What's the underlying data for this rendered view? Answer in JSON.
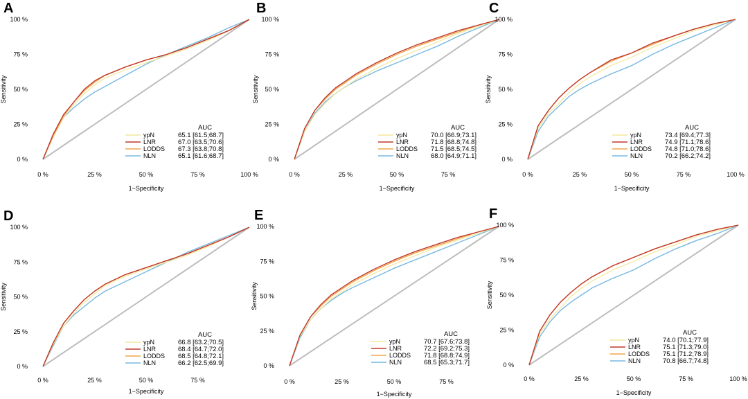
{
  "colors": {
    "ypN": "#f3e79a",
    "LNR": "#c0392b",
    "LODDS": "#f0a54a",
    "NLN": "#76b8e0",
    "diagonal": "#bdbdbd"
  },
  "chart_data": [
    {
      "type": "line",
      "panel": "A",
      "xlabel": "1−Specificity",
      "ylabel": "Sensitivity",
      "xticks": [
        "0 %",
        "25 %",
        "50 %",
        "75 %",
        "100 %"
      ],
      "yticks": [
        "0 %",
        "25 %",
        "50 %",
        "75 %",
        "100 %"
      ],
      "xlim": [
        0,
        100
      ],
      "ylim": [
        0,
        100
      ],
      "legend_title": "AUC",
      "series": [
        {
          "name": "ypN",
          "auc": "65.1 [61.5;68.7]",
          "x": [
            0,
            5,
            10,
            15,
            20,
            25,
            30,
            40,
            50,
            60,
            70,
            80,
            90,
            100
          ],
          "y": [
            0,
            16,
            30,
            39,
            47,
            53,
            58,
            64,
            69,
            74,
            79,
            85,
            92,
            100
          ]
        },
        {
          "name": "LNR",
          "auc": "67.0 [63.5;70.6]",
          "x": [
            0,
            5,
            10,
            15,
            20,
            25,
            30,
            40,
            50,
            60,
            70,
            80,
            90,
            100
          ],
          "y": [
            0,
            18,
            32,
            41,
            50,
            56,
            60,
            66,
            71,
            75,
            80,
            86,
            92,
            100
          ]
        },
        {
          "name": "LODDS",
          "auc": "67.3 [63.8;70.8]",
          "x": [
            0,
            5,
            10,
            15,
            20,
            25,
            30,
            40,
            50,
            60,
            70,
            80,
            90,
            100
          ],
          "y": [
            0,
            17,
            31,
            41,
            49,
            55,
            60,
            66,
            71,
            75,
            80,
            86,
            92,
            100
          ]
        },
        {
          "name": "NLN",
          "auc": "65.1 [61.6;68.7]",
          "x": [
            0,
            5,
            10,
            15,
            20,
            25,
            30,
            40,
            50,
            60,
            70,
            80,
            90,
            100
          ],
          "y": [
            0,
            16,
            30,
            37,
            43,
            48,
            52,
            60,
            68,
            75,
            81,
            87,
            94,
            100
          ]
        }
      ]
    },
    {
      "type": "line",
      "panel": "B",
      "xlabel": "1−Specificity",
      "ylabel": "Sensitivity",
      "xticks": [
        "0 %",
        "25 %",
        "50 %",
        "75 %"
      ],
      "yticks": [
        "0 %",
        "25 %",
        "50 %",
        "75 %",
        "100 %"
      ],
      "xlim": [
        0,
        100
      ],
      "ylim": [
        0,
        100
      ],
      "legend_title": "AUC",
      "series": [
        {
          "name": "ypN",
          "auc": "70.0 [66.9;73.1]",
          "x": [
            0,
            5,
            10,
            15,
            20,
            25,
            30,
            40,
            50,
            60,
            70,
            80,
            90,
            100
          ],
          "y": [
            0,
            20,
            32,
            40,
            47,
            52,
            57,
            65,
            72,
            78,
            84,
            90,
            95,
            100
          ]
        },
        {
          "name": "LNR",
          "auc": "71.8 [68.8;74.8]",
          "x": [
            0,
            5,
            10,
            15,
            20,
            25,
            30,
            40,
            50,
            60,
            70,
            80,
            90,
            100
          ],
          "y": [
            0,
            22,
            35,
            44,
            51,
            56,
            61,
            69,
            76,
            82,
            87,
            92,
            96,
            100
          ]
        },
        {
          "name": "LODDS",
          "auc": "71.5 [68.5;74.5]",
          "x": [
            0,
            5,
            10,
            15,
            20,
            25,
            30,
            40,
            50,
            60,
            70,
            80,
            90,
            100
          ],
          "y": [
            0,
            22,
            35,
            43,
            50,
            55,
            60,
            68,
            75,
            81,
            86,
            91,
            96,
            100
          ]
        },
        {
          "name": "NLN",
          "auc": "68.0 [64.9;71.1]",
          "x": [
            0,
            5,
            10,
            15,
            20,
            25,
            30,
            40,
            50,
            60,
            70,
            80,
            90,
            100
          ],
          "y": [
            0,
            20,
            33,
            41,
            47,
            52,
            56,
            63,
            69,
            75,
            81,
            88,
            94,
            100
          ]
        }
      ]
    },
    {
      "type": "line",
      "panel": "C",
      "xlabel": "1−Specificity",
      "ylabel": "Sensitivity",
      "xticks": [
        "0 %",
        "25 %",
        "50 %",
        "75 %",
        "100 %"
      ],
      "yticks": [
        "0 %",
        "25 %",
        "50 %",
        "75 %",
        "100 %"
      ],
      "xlim": [
        0,
        100
      ],
      "ylim": [
        0,
        100
      ],
      "legend_title": "AUC",
      "series": [
        {
          "name": "ypN",
          "auc": "73.4 [69.4;77.3]",
          "x": [
            0,
            5,
            10,
            15,
            20,
            25,
            30,
            40,
            50,
            60,
            70,
            80,
            90,
            100
          ],
          "y": [
            0,
            22,
            33,
            40,
            48,
            54,
            59,
            67,
            73,
            80,
            86,
            92,
            96,
            100
          ]
        },
        {
          "name": "LNR",
          "auc": "74.9 [71.1;78.6]",
          "x": [
            0,
            5,
            10,
            15,
            20,
            25,
            30,
            40,
            50,
            60,
            70,
            80,
            90,
            100
          ],
          "y": [
            0,
            24,
            35,
            44,
            51,
            57,
            62,
            71,
            76,
            83,
            88,
            93,
            97,
            100
          ]
        },
        {
          "name": "LODDS",
          "auc": "74.8 [71.0;78.6]",
          "x": [
            0,
            5,
            10,
            15,
            20,
            25,
            30,
            40,
            50,
            60,
            70,
            80,
            90,
            100
          ],
          "y": [
            0,
            24,
            35,
            44,
            51,
            57,
            62,
            70,
            76,
            82,
            88,
            93,
            97,
            100
          ]
        },
        {
          "name": "NLN",
          "auc": "70.2 [66.2;74.2]",
          "x": [
            0,
            5,
            10,
            15,
            20,
            25,
            30,
            40,
            50,
            60,
            70,
            80,
            90,
            100
          ],
          "y": [
            0,
            20,
            31,
            38,
            45,
            50,
            54,
            61,
            67,
            75,
            82,
            88,
            94,
            100
          ]
        }
      ]
    },
    {
      "type": "line",
      "panel": "D",
      "xlabel": "1−Specificity",
      "ylabel": "Sensitivity",
      "xticks": [
        "0 %",
        "25 %",
        "50 %",
        "75 %"
      ],
      "yticks": [
        "0 %",
        "25 %",
        "50 %",
        "75 %",
        "100 %"
      ],
      "xlim": [
        0,
        100
      ],
      "ylim": [
        0,
        100
      ],
      "legend_title": "AUC",
      "series": [
        {
          "name": "ypN",
          "auc": "66.8 [63.2;70.5]",
          "x": [
            0,
            5,
            10,
            15,
            20,
            25,
            30,
            40,
            50,
            60,
            70,
            80,
            90,
            100
          ],
          "y": [
            0,
            16,
            29,
            38,
            46,
            52,
            58,
            65,
            70,
            75,
            80,
            86,
            93,
            100
          ]
        },
        {
          "name": "LNR",
          "auc": "68.4 [64.7;72.0]",
          "x": [
            0,
            5,
            10,
            15,
            20,
            25,
            30,
            40,
            50,
            60,
            70,
            80,
            90,
            100
          ],
          "y": [
            0,
            17,
            31,
            40,
            48,
            54,
            59,
            66,
            71,
            76,
            81,
            87,
            93,
            100
          ]
        },
        {
          "name": "LODDS",
          "auc": "68.5 [64.8;72.1]",
          "x": [
            0,
            5,
            10,
            15,
            20,
            25,
            30,
            40,
            50,
            60,
            70,
            80,
            90,
            100
          ],
          "y": [
            0,
            17,
            31,
            40,
            48,
            54,
            59,
            66,
            71,
            76,
            81,
            87,
            93,
            100
          ]
        },
        {
          "name": "NLN",
          "auc": "66.2 [62.5;69.9]",
          "x": [
            0,
            5,
            10,
            15,
            20,
            25,
            30,
            40,
            50,
            60,
            70,
            80,
            90,
            100
          ],
          "y": [
            0,
            15,
            29,
            37,
            43,
            49,
            54,
            61,
            68,
            75,
            82,
            88,
            94,
            100
          ]
        }
      ]
    },
    {
      "type": "line",
      "panel": "E",
      "xlabel": "1−Specificity",
      "ylabel": "Sensitivity",
      "xticks": [
        "0 %",
        "25 %",
        "50 %",
        "75 %"
      ],
      "yticks": [
        "0 %",
        "25 %",
        "50 %",
        "75 %",
        "100 %"
      ],
      "xlim": [
        0,
        100
      ],
      "ylim": [
        0,
        100
      ],
      "legend_title": "AUC",
      "series": [
        {
          "name": "ypN",
          "auc": "70.7 [67.6;73.8]",
          "x": [
            0,
            5,
            10,
            15,
            20,
            25,
            30,
            40,
            50,
            60,
            70,
            80,
            90,
            100
          ],
          "y": [
            0,
            21,
            33,
            41,
            48,
            53,
            58,
            66,
            73,
            79,
            85,
            90,
            95,
            100
          ]
        },
        {
          "name": "LNR",
          "auc": "72.2 [69.2;75.3]",
          "x": [
            0,
            5,
            10,
            15,
            20,
            25,
            30,
            40,
            50,
            60,
            70,
            80,
            90,
            100
          ],
          "y": [
            0,
            22,
            35,
            44,
            51,
            56,
            61,
            69,
            76,
            82,
            87,
            92,
            96,
            100
          ]
        },
        {
          "name": "LODDS",
          "auc": "71.8 [68.8;74.9]",
          "x": [
            0,
            5,
            10,
            15,
            20,
            25,
            30,
            40,
            50,
            60,
            70,
            80,
            90,
            100
          ],
          "y": [
            0,
            22,
            35,
            43,
            50,
            55,
            60,
            68,
            75,
            81,
            86,
            91,
            96,
            100
          ]
        },
        {
          "name": "NLN",
          "auc": "68.5 [65.3;71.7]",
          "x": [
            0,
            5,
            10,
            15,
            20,
            25,
            30,
            40,
            50,
            60,
            70,
            80,
            90,
            100
          ],
          "y": [
            0,
            20,
            33,
            41,
            47,
            52,
            56,
            63,
            70,
            76,
            82,
            88,
            94,
            100
          ]
        }
      ]
    },
    {
      "type": "line",
      "panel": "F",
      "xlabel": "1−Specificity",
      "ylabel": "Sensitivity",
      "xticks": [
        "0 %",
        "25 %",
        "50 %",
        "75 %",
        "100 %"
      ],
      "yticks": [
        "0 %",
        "25 %",
        "50 %",
        "75 %",
        "100 %"
      ],
      "xlim": [
        0,
        100
      ],
      "ylim": [
        0,
        100
      ],
      "legend_title": "AUC",
      "series": [
        {
          "name": "ypN",
          "auc": "74.0 [70.1;77.9]",
          "x": [
            0,
            5,
            10,
            15,
            20,
            25,
            30,
            40,
            50,
            60,
            70,
            80,
            90,
            100
          ],
          "y": [
            0,
            22,
            33,
            41,
            49,
            55,
            60,
            68,
            74,
            81,
            86,
            92,
            96,
            100
          ]
        },
        {
          "name": "LNR",
          "auc": "75.1 [71.3;79.0]",
          "x": [
            0,
            5,
            10,
            15,
            20,
            25,
            30,
            40,
            50,
            60,
            70,
            80,
            90,
            100
          ],
          "y": [
            0,
            24,
            36,
            45,
            52,
            58,
            63,
            71,
            77,
            83,
            88,
            93,
            97,
            100
          ]
        },
        {
          "name": "LODDS",
          "auc": "75.1 [71.2;78.9]",
          "x": [
            0,
            5,
            10,
            15,
            20,
            25,
            30,
            40,
            50,
            60,
            70,
            80,
            90,
            100
          ],
          "y": [
            0,
            24,
            36,
            45,
            52,
            58,
            63,
            71,
            77,
            83,
            88,
            93,
            97,
            100
          ]
        },
        {
          "name": "NLN",
          "auc": "70.8 [66.7;74.8]",
          "x": [
            0,
            5,
            10,
            15,
            20,
            25,
            30,
            40,
            50,
            60,
            70,
            80,
            90,
            100
          ],
          "y": [
            0,
            20,
            31,
            39,
            45,
            50,
            55,
            62,
            68,
            76,
            83,
            89,
            94,
            100
          ]
        }
      ]
    }
  ]
}
